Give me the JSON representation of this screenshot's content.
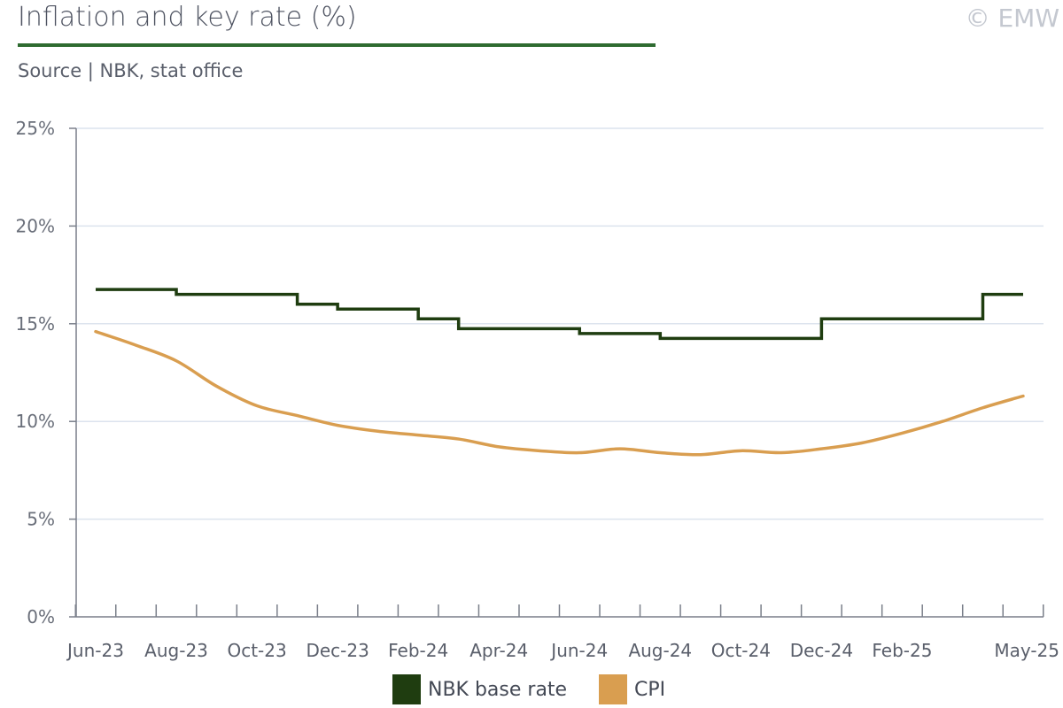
{
  "header": {
    "title": "Inflation and key rate (%)",
    "copyright": "© EMW",
    "source": "Source | NBK, stat office"
  },
  "colors": {
    "title_rule": "#2e6b30",
    "base_rate": "#1f3d10",
    "cpi": "#d99e50",
    "grid": "#dce3ee",
    "axis": "#7a7f8a"
  },
  "chart_data": {
    "type": "line",
    "title": "Inflation and key rate (%)",
    "ylim": [
      0,
      25
    ],
    "y_ticks": [
      0,
      5,
      10,
      15,
      20,
      25
    ],
    "y_tick_labels": [
      "0%",
      "5%",
      "10%",
      "15%",
      "20%",
      "25%"
    ],
    "grid": true,
    "legend": "bottom",
    "categories": [
      "Jun-23",
      "Jul-23",
      "Aug-23",
      "Sep-23",
      "Oct-23",
      "Nov-23",
      "Dec-23",
      "Jan-24",
      "Feb-24",
      "Mar-24",
      "Apr-24",
      "May-24",
      "Jun-24",
      "Jul-24",
      "Aug-24",
      "Sep-24",
      "Oct-24",
      "Nov-24",
      "Dec-24",
      "Jan-25",
      "Feb-25",
      "Mar-25",
      "Apr-25",
      "May-25"
    ],
    "x_tick_labels": [
      {
        "index": 0,
        "label": "Jun-23"
      },
      {
        "index": 2,
        "label": "Aug-23"
      },
      {
        "index": 4,
        "label": "Oct-23"
      },
      {
        "index": 6,
        "label": "Dec-23"
      },
      {
        "index": 8,
        "label": "Feb-24"
      },
      {
        "index": 10,
        "label": "Apr-24"
      },
      {
        "index": 12,
        "label": "Jun-24"
      },
      {
        "index": 14,
        "label": "Aug-24"
      },
      {
        "index": 16,
        "label": "Oct-24"
      },
      {
        "index": 18,
        "label": "Dec-24"
      },
      {
        "index": 20,
        "label": "Feb-25"
      },
      {
        "index": 23,
        "label": "May-25"
      }
    ],
    "series": [
      {
        "name": "NBK base rate",
        "style": "step",
        "values": [
          16.75,
          16.75,
          16.5,
          16.5,
          16.5,
          16.0,
          15.75,
          15.75,
          15.25,
          14.75,
          14.75,
          14.75,
          14.5,
          14.5,
          14.25,
          14.25,
          14.25,
          14.25,
          15.25,
          15.25,
          15.25,
          15.25,
          16.5,
          16.5
        ]
      },
      {
        "name": "CPI",
        "style": "smooth",
        "values": [
          14.6,
          13.9,
          13.1,
          11.8,
          10.8,
          10.3,
          9.8,
          9.5,
          9.3,
          9.1,
          8.7,
          8.5,
          8.4,
          8.6,
          8.4,
          8.3,
          8.5,
          8.4,
          8.6,
          8.9,
          9.4,
          10.0,
          10.7,
          11.3
        ]
      }
    ]
  }
}
